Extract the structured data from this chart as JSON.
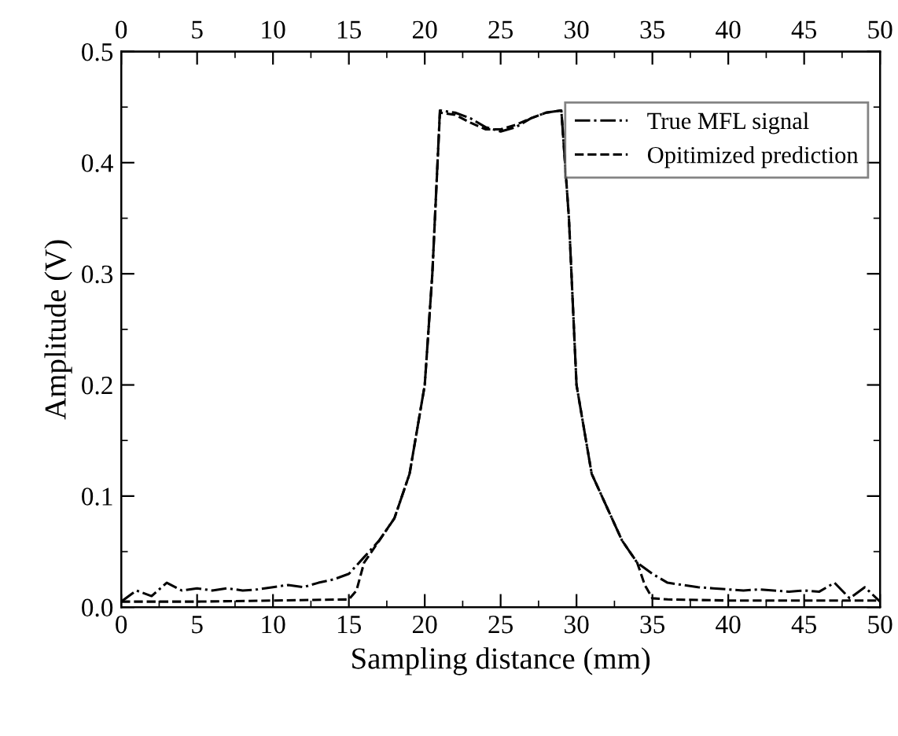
{
  "chart_data": {
    "type": "line",
    "xlabel": "Sampling distance (mm)",
    "ylabel": "Amplitude (V)",
    "xlim": [
      0,
      50
    ],
    "xticks": [
      0,
      5,
      10,
      15,
      20,
      25,
      30,
      35,
      40,
      45,
      50
    ],
    "x2lim": [
      0,
      50
    ],
    "x2ticks": [
      0,
      5,
      10,
      15,
      20,
      25,
      30,
      35,
      40,
      45,
      50
    ],
    "ylim": [
      0,
      0.5
    ],
    "yticks": [
      {
        "value": 0,
        "label": "0.0"
      },
      0.1,
      0.2,
      0.3,
      0.4,
      0.5
    ],
    "legend": "top right",
    "grid": false,
    "series": [
      {
        "name": "True MFL signal",
        "color": "#000000",
        "line_style": "dashdot",
        "x": [
          0,
          1,
          2,
          3,
          4,
          5,
          6,
          7,
          8,
          9,
          10,
          11,
          12,
          13,
          14,
          15,
          16,
          17,
          18,
          19,
          20,
          20.5,
          21,
          22,
          23,
          24,
          25,
          26,
          27,
          28,
          29,
          29.5,
          30,
          31,
          32,
          33,
          34,
          35,
          36,
          37,
          38,
          39,
          40,
          41,
          42,
          43,
          44,
          45,
          46,
          47,
          48,
          49,
          50
        ],
        "values": [
          0.005,
          0.015,
          0.01,
          0.022,
          0.015,
          0.017,
          0.015,
          0.017,
          0.015,
          0.016,
          0.018,
          0.02,
          0.018,
          0.022,
          0.025,
          0.03,
          0.045,
          0.06,
          0.08,
          0.12,
          0.2,
          0.3,
          0.447,
          0.445,
          0.44,
          0.432,
          0.428,
          0.432,
          0.44,
          0.445,
          0.447,
          0.35,
          0.2,
          0.12,
          0.09,
          0.06,
          0.04,
          0.03,
          0.022,
          0.02,
          0.018,
          0.017,
          0.016,
          0.015,
          0.016,
          0.015,
          0.014,
          0.015,
          0.014,
          0.022,
          0.008,
          0.018,
          0.005
        ]
      },
      {
        "name": "Opitimized prediction",
        "color": "#000000",
        "line_style": "dashed",
        "x": [
          0,
          5,
          10,
          15,
          15.5,
          16,
          17,
          18,
          19,
          20,
          20.5,
          21,
          22,
          23,
          24,
          25,
          26,
          27,
          28,
          29,
          29.5,
          30,
          31,
          32,
          33,
          34,
          34.5,
          35,
          36,
          40,
          45,
          50
        ],
        "values": [
          0.005,
          0.005,
          0.006,
          0.007,
          0.015,
          0.04,
          0.06,
          0.08,
          0.12,
          0.2,
          0.3,
          0.445,
          0.443,
          0.436,
          0.43,
          0.43,
          0.434,
          0.44,
          0.445,
          0.447,
          0.35,
          0.2,
          0.12,
          0.09,
          0.06,
          0.04,
          0.02,
          0.008,
          0.007,
          0.006,
          0.006,
          0.006
        ]
      }
    ]
  }
}
